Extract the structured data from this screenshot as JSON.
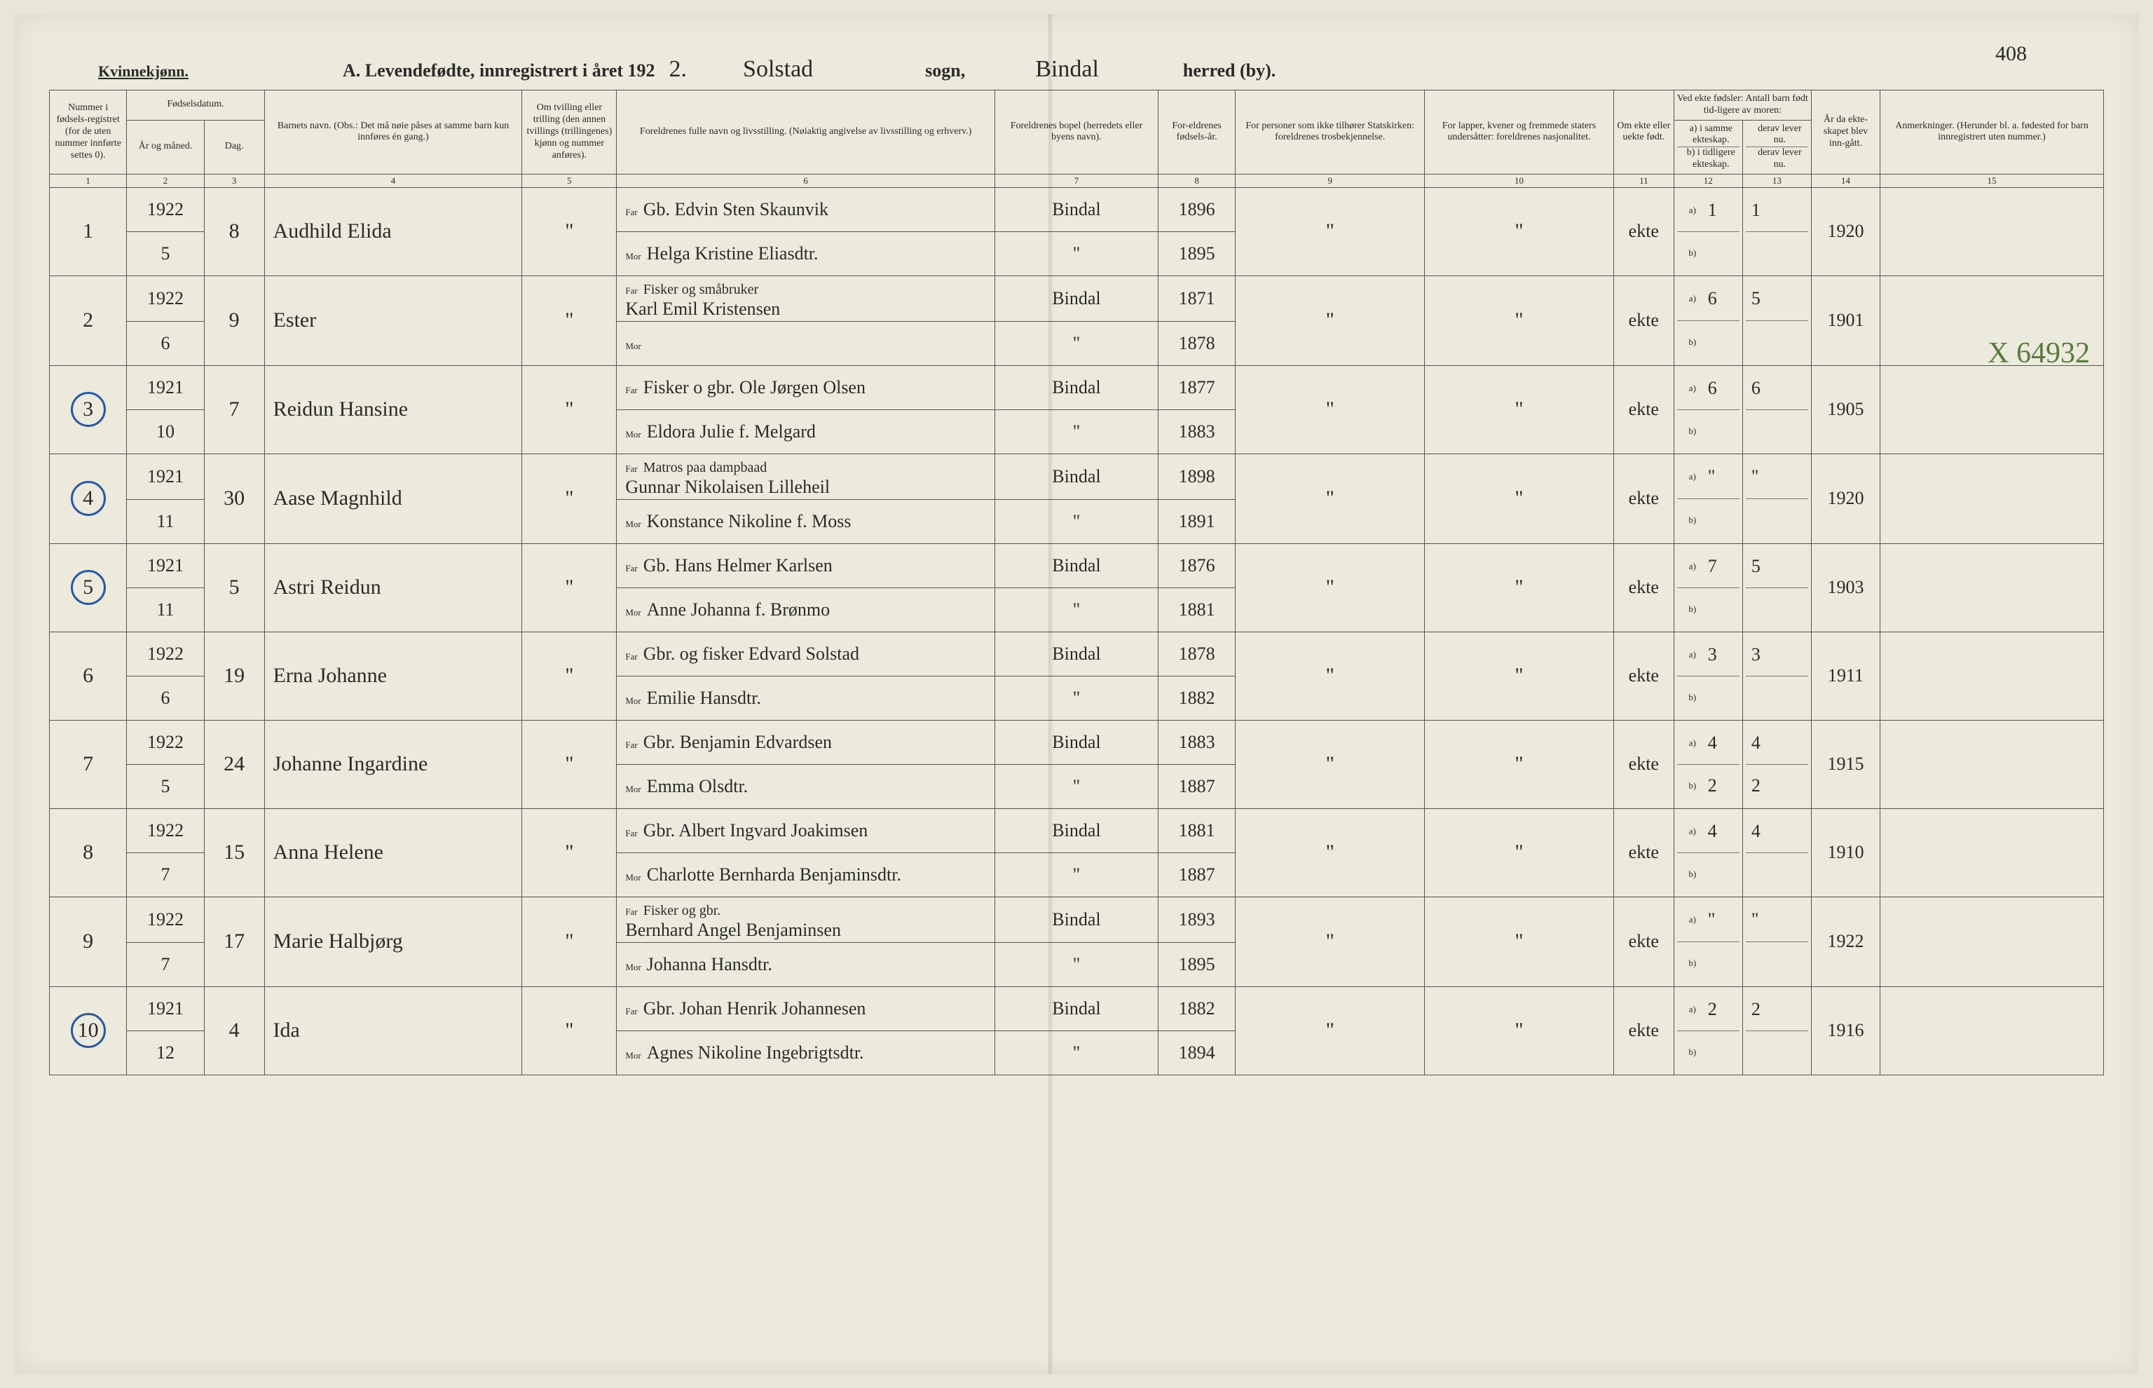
{
  "page_number_handwritten": "408",
  "gender_label": "Kvinnekjønn.",
  "title_prefix": "A.  Levendefødte, innregistrert i året 192",
  "title_year_suffix": "2.",
  "sogn_hand": "Solstad",
  "sogn_label": "sogn,",
  "herred_hand": "Bindal",
  "herred_label": "herred (by).",
  "side_annotation": "X 64932",
  "colors": {
    "paper": "#eceadc",
    "ink": "#2a2a2a",
    "blue_pencil": "#2a5aa0",
    "green_pencil": "#5a7a40"
  },
  "columns": {
    "c1": "Nummer i fødsels-registret (for de uten nummer innførte settes 0).",
    "c2_top": "Fødselsdatum.",
    "c2a": "År og måned.",
    "c2b": "Dag.",
    "c4": "Barnets navn.\n(Obs.: Det må nøie påses at samme barn kun innføres én gang.)",
    "c5": "Om tvilling eller trilling (den annen tvillings (trillingenes) kjønn og nummer anføres).",
    "c6": "Foreldrenes fulle navn og livsstilling.\n(Nøiaktig angivelse av livsstilling og erhverv.)",
    "c7": "Foreldrenes bopel (herredets eller byens navn).",
    "c8": "For-eldrenes fødsels-år.",
    "c9": "For personer som ikke tilhører Statskirken: foreldrenes trosbekjennelse.",
    "c10": "For lapper, kvener og fremmede staters undersåtter: foreldrenes nasjonalitet.",
    "c11": "Om ekte eller uekte født.",
    "c12_top": "Ved ekte fødsler: Antall barn født tid-ligere av moren:",
    "c12a": "a) i samme ekteskap.",
    "c12b": "b) i tidligere ekteskap.",
    "c13_top": "",
    "c13a": "derav lever nu.",
    "c13b": "derav lever nu.",
    "c14": "År da ekte-skapet blev inn-gått.",
    "c15": "Anmerkninger.\n(Herunder bl. a. fødested for barn innregistrert uten nummer.)"
  },
  "colnums": [
    "1",
    "2",
    "3",
    "4",
    "5",
    "6",
    "7",
    "8",
    "9",
    "10",
    "11",
    "12",
    "13",
    "14",
    "15"
  ],
  "rows": [
    {
      "num": "1",
      "circled": false,
      "year_month_top": "1922",
      "year_month_bot": "5",
      "day": "8",
      "name": "Audhild Elida",
      "twin": "\"",
      "far": "Gb. Edvin Sten Skaunvik",
      "mor": "Helga Kristine Eliasdtr.",
      "bopel_far": "Bindal",
      "bopel_mor": "\"",
      "faar_far": "1896",
      "faar_mor": "1895",
      "c9": "\"",
      "c10": "\"",
      "c11": "ekte",
      "a": "1",
      "a2": "1",
      "b": "",
      "b2": "",
      "c14": "1920",
      "c15": ""
    },
    {
      "num": "2",
      "circled": false,
      "year_month_top": "1922",
      "year_month_bot": "6",
      "day": "9",
      "name": "Ester",
      "twin": "\"",
      "far_pre": "Fisker og småbruker",
      "far": "Karl Emil Kristensen",
      "mor": "",
      "bopel_far": "Bindal",
      "bopel_mor": "\"",
      "faar_far": "1871",
      "faar_mor": "1878",
      "c9": "\"",
      "c10": "\"",
      "c11": "ekte",
      "a": "6",
      "a2": "5",
      "b": "",
      "b2": "",
      "c14": "1901",
      "c15": ""
    },
    {
      "num": "3",
      "circled": true,
      "year_month_top": "1921",
      "year_month_bot": "10",
      "day": "7",
      "name": "Reidun Hansine",
      "twin": "\"",
      "far": "Fisker o gbr. Ole Jørgen Olsen",
      "mor": "Eldora Julie f. Melgard",
      "bopel_far": "Bindal",
      "bopel_mor": "\"",
      "faar_far": "1877",
      "faar_mor": "1883",
      "c9": "\"",
      "c10": "\"",
      "c11": "ekte",
      "a": "6",
      "a2": "6",
      "b": "",
      "b2": "",
      "c14": "1905",
      "c15": ""
    },
    {
      "num": "4",
      "circled": true,
      "year_month_top": "1921",
      "year_month_bot": "11",
      "day": "30",
      "name": "Aase Magnhild",
      "twin": "\"",
      "far_pre": "Matros paa dampbaad",
      "far": "Gunnar Nikolaisen Lilleheil",
      "mor": "Konstance Nikoline f. Moss",
      "bopel_far": "Bindal",
      "bopel_mor": "\"",
      "faar_far": "1898",
      "faar_mor": "1891",
      "c9": "\"",
      "c10": "\"",
      "c11": "ekte",
      "a": "\"",
      "a2": "\"",
      "b": "",
      "b2": "",
      "c14": "1920",
      "c15": ""
    },
    {
      "num": "5",
      "circled": true,
      "year_month_top": "1921",
      "year_month_bot": "11",
      "day": "5",
      "name": "Astri Reidun",
      "twin": "\"",
      "far": "Gb. Hans Helmer Karlsen",
      "mor": "Anne Johanna f. Brønmo",
      "bopel_far": "Bindal",
      "bopel_mor": "\"",
      "faar_far": "1876",
      "faar_mor": "1881",
      "c9": "\"",
      "c10": "\"",
      "c11": "ekte",
      "a": "7",
      "a2": "5",
      "b": "",
      "b2": "",
      "c14": "1903",
      "c15": ""
    },
    {
      "num": "6",
      "circled": false,
      "year_month_top": "1922",
      "year_month_bot": "6",
      "day": "19",
      "name": "Erna Johanne",
      "twin": "\"",
      "far": "Gbr. og fisker Edvard Solstad",
      "mor": "Emilie Hansdtr.",
      "bopel_far": "Bindal",
      "bopel_mor": "\"",
      "faar_far": "1878",
      "faar_mor": "1882",
      "c9": "\"",
      "c10": "\"",
      "c11": "ekte",
      "a": "3",
      "a2": "3",
      "b": "",
      "b2": "",
      "c14": "1911",
      "c15": ""
    },
    {
      "num": "7",
      "circled": false,
      "year_month_top": "1922",
      "year_month_bot": "5",
      "day": "24",
      "name": "Johanne Ingardine",
      "twin": "\"",
      "far": "Gbr. Benjamin Edvardsen",
      "mor": "Emma Olsdtr.",
      "bopel_far": "Bindal",
      "bopel_mor": "\"",
      "faar_far": "1883",
      "faar_mor": "1887",
      "c9": "\"",
      "c10": "\"",
      "c11": "ekte",
      "a": "4",
      "a2": "4",
      "b": "2",
      "b2": "2",
      "c14": "1915",
      "c15": ""
    },
    {
      "num": "8",
      "circled": false,
      "year_month_top": "1922",
      "year_month_bot": "7",
      "day": "15",
      "name": "Anna Helene",
      "twin": "\"",
      "far": "Gbr. Albert Ingvard Joakimsen",
      "mor": "Charlotte Bernharda Benjaminsdtr.",
      "bopel_far": "Bindal",
      "bopel_mor": "\"",
      "faar_far": "1881",
      "faar_mor": "1887",
      "c9": "\"",
      "c10": "\"",
      "c11": "ekte",
      "a": "4",
      "a2": "4",
      "b": "",
      "b2": "",
      "c14": "1910",
      "c15": ""
    },
    {
      "num": "9",
      "circled": false,
      "year_month_top": "1922",
      "year_month_bot": "7",
      "day": "17",
      "name": "Marie Halbjørg",
      "twin": "\"",
      "far_pre": "Fisker og gbr.",
      "far": "Bernhard Angel Benjaminsen",
      "mor": "Johanna Hansdtr.",
      "bopel_far": "Bindal",
      "bopel_mor": "\"",
      "faar_far": "1893",
      "faar_mor": "1895",
      "c9": "\"",
      "c10": "\"",
      "c11": "ekte",
      "a": "\"",
      "a2": "\"",
      "b": "",
      "b2": "",
      "c14": "1922",
      "c15": ""
    },
    {
      "num": "10",
      "circled": true,
      "year_month_top": "1921",
      "year_month_bot": "12",
      "day": "4",
      "name": "Ida",
      "twin": "\"",
      "far": "Gbr. Johan Henrik Johannesen",
      "mor": "Agnes Nikoline Ingebrigtsdtr.",
      "bopel_far": "Bindal",
      "bopel_mor": "\"",
      "faar_far": "1882",
      "faar_mor": "1894",
      "c9": "\"",
      "c10": "\"",
      "c11": "ekte",
      "a": "2",
      "a2": "2",
      "b": "",
      "b2": "",
      "c14": "1916",
      "c15": ""
    }
  ]
}
